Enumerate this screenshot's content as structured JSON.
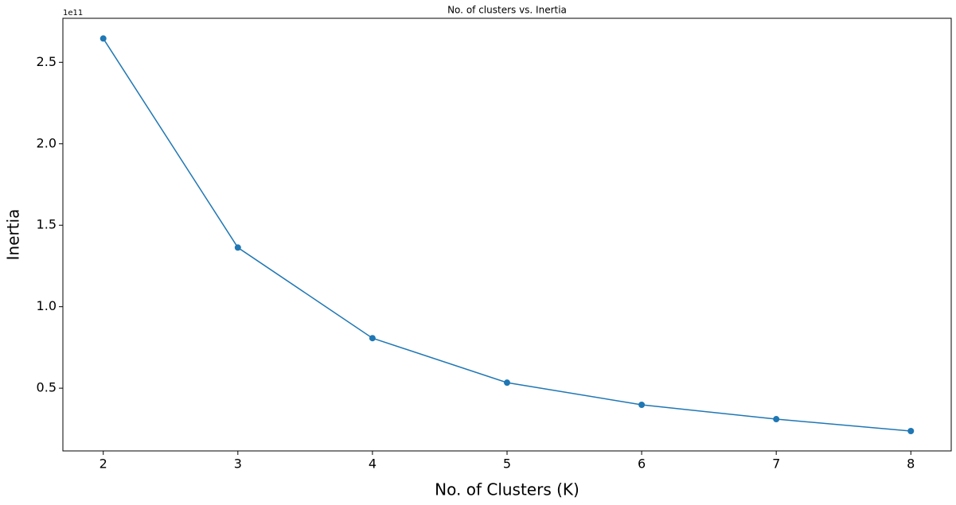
{
  "chart_data": {
    "type": "line",
    "title": "No. of clusters vs. Inertia",
    "x_label": "No. of Clusters (K)",
    "y_label": "Inertia",
    "y_offset_label": "1e11",
    "x": [
      2,
      3,
      4,
      5,
      6,
      7,
      8
    ],
    "series": [
      {
        "name": "Inertia",
        "color": "#1f77b4",
        "values": [
          2.646,
          1.363,
          0.807,
          0.534,
          0.398,
          0.31,
          0.237
        ]
      }
    ],
    "xlim": [
      1.7,
      8.3
    ],
    "xticks": [
      2,
      3,
      4,
      5,
      6,
      7,
      8
    ],
    "ylim": [
      0.115,
      2.77
    ],
    "yticks": [
      0.5,
      {
        "value": 1,
        "label": "1.0"
      },
      1.5,
      {
        "value": 2,
        "label": "2.0"
      },
      2.5
    ],
    "grid": false,
    "marker": "circle"
  }
}
